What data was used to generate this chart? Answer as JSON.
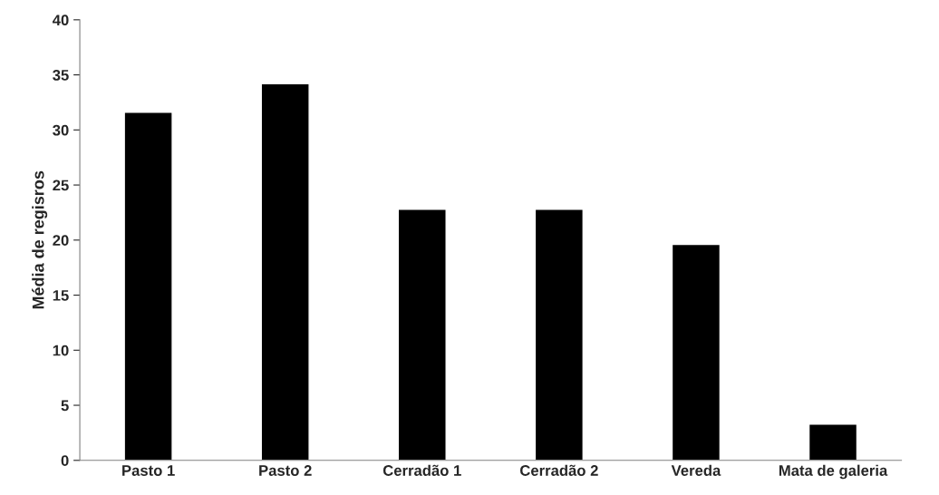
{
  "chart_data": {
    "type": "bar",
    "ylabel": "Média de regisros",
    "categories": [
      "Pasto 1",
      "Pasto 2",
      "Cerradão 1",
      "Cerradão 2",
      "Vereda",
      "Mata de galeria"
    ],
    "values": [
      31.6,
      34.2,
      22.8,
      22.8,
      19.6,
      3.3
    ],
    "color": "#000000",
    "ylim": [
      0,
      40
    ],
    "yticks": [
      0,
      5,
      10,
      15,
      20,
      25,
      30,
      35,
      40
    ],
    "grid": false,
    "legend": false
  }
}
